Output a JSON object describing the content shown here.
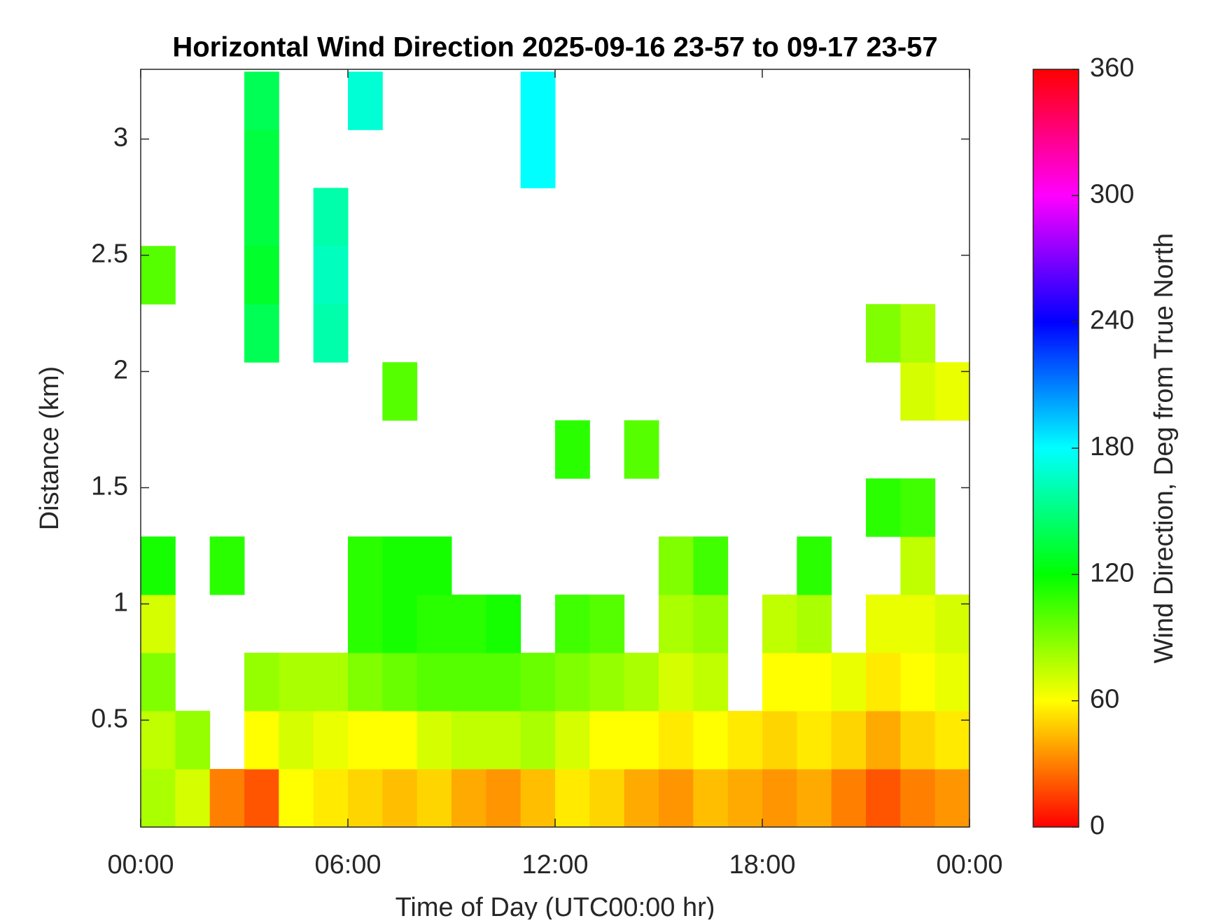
{
  "chart_data": {
    "type": "heatmap",
    "title": "Horizontal Wind Direction 2025-09-16 23-57 to 09-17 23-57",
    "x_label": "Time of Day (UTC00:00 hr)",
    "y_label": "Distance (km)",
    "colorbar_label": "Wind Direction, Deg from True North",
    "colormap": "hsv",
    "x": [
      0.5,
      1.5,
      2.5,
      3.5,
      4.5,
      5.5,
      6.5,
      7.5,
      8.5,
      9.5,
      10.5,
      11.5,
      12.5,
      13.5,
      14.5,
      15.5,
      16.5,
      17.5,
      18.5,
      19.5,
      20.5,
      21.5,
      22.5,
      23.5
    ],
    "y": [
      0.165,
      0.415,
      0.665,
      0.915,
      1.165,
      1.415,
      1.665,
      1.915,
      2.165,
      2.415,
      2.665,
      2.915,
      3.165
    ],
    "z": [
      [
        80,
        70,
        30,
        20,
        60,
        55,
        50,
        45,
        50,
        40,
        35,
        45,
        55,
        50,
        40,
        35,
        45,
        40,
        35,
        40,
        30,
        20,
        30,
        35
      ],
      [
        75,
        85,
        null,
        60,
        70,
        65,
        60,
        60,
        70,
        75,
        75,
        80,
        70,
        60,
        60,
        55,
        60,
        55,
        50,
        55,
        50,
        40,
        50,
        55
      ],
      [
        90,
        null,
        null,
        85,
        80,
        80,
        90,
        95,
        100,
        100,
        100,
        95,
        90,
        85,
        80,
        70,
        75,
        null,
        60,
        60,
        65,
        55,
        60,
        65
      ],
      [
        70,
        null,
        null,
        null,
        null,
        null,
        110,
        115,
        110,
        110,
        115,
        null,
        105,
        100,
        null,
        80,
        85,
        null,
        75,
        80,
        null,
        65,
        65,
        70
      ],
      [
        115,
        null,
        110,
        null,
        null,
        null,
        110,
        115,
        115,
        null,
        null,
        null,
        null,
        null,
        null,
        90,
        105,
        null,
        null,
        110,
        null,
        null,
        75,
        null
      ],
      [
        null,
        null,
        null,
        null,
        null,
        null,
        null,
        null,
        null,
        null,
        null,
        null,
        null,
        null,
        null,
        null,
        null,
        null,
        null,
        null,
        null,
        110,
        105,
        null
      ],
      [
        null,
        null,
        null,
        null,
        null,
        null,
        null,
        null,
        null,
        null,
        null,
        null,
        110,
        null,
        100,
        null,
        null,
        null,
        null,
        null,
        null,
        null,
        null,
        null
      ],
      [
        null,
        null,
        null,
        null,
        null,
        null,
        null,
        100,
        null,
        null,
        null,
        null,
        null,
        null,
        null,
        null,
        null,
        null,
        null,
        null,
        null,
        null,
        70,
        65
      ],
      [
        null,
        null,
        null,
        140,
        null,
        160,
        null,
        null,
        null,
        null,
        null,
        null,
        null,
        null,
        null,
        null,
        null,
        null,
        null,
        null,
        null,
        90,
        80,
        null
      ],
      [
        100,
        null,
        null,
        130,
        null,
        165,
        null,
        null,
        null,
        null,
        null,
        null,
        null,
        null,
        null,
        null,
        null,
        null,
        null,
        null,
        null,
        null,
        null,
        null
      ],
      [
        null,
        null,
        null,
        135,
        null,
        160,
        null,
        null,
        null,
        null,
        null,
        null,
        null,
        null,
        null,
        null,
        null,
        null,
        null,
        null,
        null,
        null,
        null,
        null
      ],
      [
        null,
        null,
        null,
        135,
        null,
        null,
        null,
        null,
        null,
        null,
        null,
        180,
        null,
        null,
        null,
        null,
        null,
        null,
        null,
        null,
        null,
        null,
        null,
        null
      ],
      [
        null,
        null,
        null,
        140,
        null,
        null,
        170,
        null,
        null,
        null,
        null,
        180,
        null,
        null,
        null,
        null,
        null,
        null,
        null,
        null,
        null,
        null,
        null,
        null
      ]
    ],
    "xlim": [
      0,
      24
    ],
    "xticks": [
      {
        "value": 0,
        "label": "00:00"
      },
      {
        "value": 6,
        "label": "06:00"
      },
      {
        "value": 12,
        "label": "12:00"
      },
      {
        "value": 18,
        "label": "18:00"
      },
      {
        "value": 24,
        "label": "00:00"
      }
    ],
    "ylim": [
      0.04,
      3.3
    ],
    "yticks": [
      0.5,
      1,
      1.5,
      2,
      2.5,
      3
    ],
    "clim": [
      0,
      360
    ],
    "cticks": [
      0,
      60,
      120,
      180,
      240,
      300,
      360
    ]
  }
}
